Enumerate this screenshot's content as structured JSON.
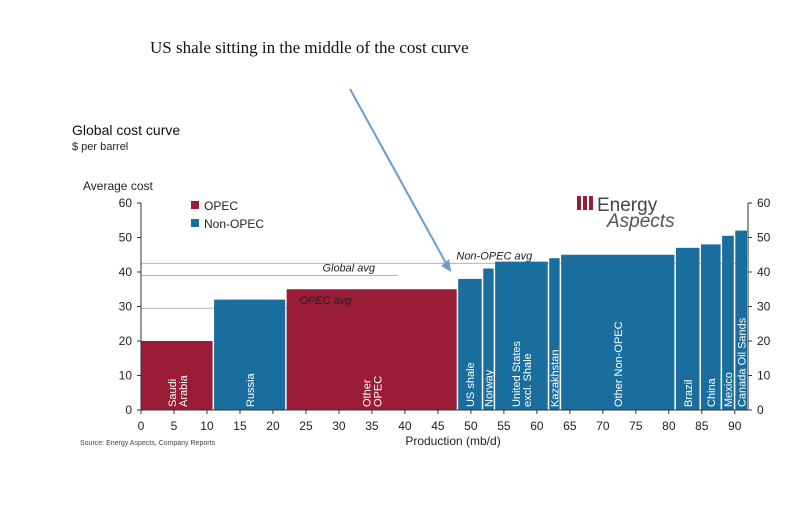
{
  "headline": "US shale sitting in the middle of the cost curve",
  "source": "Source: Energy Aspects, Company Reports",
  "logo": {
    "line1": "Energy",
    "line2": "Aspects"
  },
  "chart_data": {
    "type": "bar",
    "title": "Global cost curve",
    "subtitle": "$ per barrel",
    "ylabel": "Average cost",
    "xlabel": "Production (mb/d)",
    "xlim": [
      0,
      92
    ],
    "ylim": [
      0,
      60
    ],
    "xticks": [
      0,
      5,
      10,
      15,
      20,
      25,
      30,
      35,
      40,
      45,
      50,
      55,
      60,
      65,
      70,
      75,
      80,
      85,
      90
    ],
    "yticks": [
      0,
      10,
      20,
      30,
      40,
      50,
      60
    ],
    "legend": {
      "position": "top-left",
      "entries": [
        {
          "name": "OPEC",
          "color": "#9b1c37"
        },
        {
          "name": "Non-OPEC",
          "color": "#1a6e9e"
        }
      ]
    },
    "bars": [
      {
        "label": "Saudi Arabia",
        "lines": [
          "Saudi",
          "Arabia"
        ],
        "group": "OPEC",
        "x0": 0,
        "x1": 11,
        "value": 20
      },
      {
        "label": "Russia",
        "lines": [
          "Russia"
        ],
        "group": "Non-OPEC",
        "x0": 11,
        "x1": 22,
        "value": 32
      },
      {
        "label": "Other OPEC",
        "lines": [
          "Other",
          "OPEC"
        ],
        "group": "OPEC",
        "x0": 22,
        "x1": 48,
        "value": 35
      },
      {
        "label": "US shale",
        "lines": [
          "US  shale"
        ],
        "group": "Non-OPEC",
        "x0": 48,
        "x1": 51.8,
        "value": 38
      },
      {
        "label": "Norway",
        "lines": [
          "Norway"
        ],
        "group": "Non-OPEC",
        "x0": 51.8,
        "x1": 53.6,
        "value": 41
      },
      {
        "label": "United States excl. Shale",
        "lines": [
          "United States",
          "excl. Shale"
        ],
        "group": "Non-OPEC",
        "x0": 53.6,
        "x1": 61.8,
        "value": 43
      },
      {
        "label": "Kazakhstan",
        "lines": [
          "Kazakhstan"
        ],
        "group": "Non-OPEC",
        "x0": 61.8,
        "x1": 63.6,
        "value": 44
      },
      {
        "label": "Other Non-OPEC",
        "lines": [
          "Other Non-OPEC"
        ],
        "group": "Non-OPEC",
        "x0": 63.6,
        "x1": 81,
        "value": 45
      },
      {
        "label": "Brazil",
        "lines": [
          "Brazil"
        ],
        "group": "Non-OPEC",
        "x0": 81,
        "x1": 84.8,
        "value": 47
      },
      {
        "label": "China",
        "lines": [
          "China"
        ],
        "group": "Non-OPEC",
        "x0": 84.8,
        "x1": 88,
        "value": 48
      },
      {
        "label": "Mexico",
        "lines": [
          "Mexico"
        ],
        "group": "Non-OPEC",
        "x0": 88,
        "x1": 90,
        "value": 50.5
      },
      {
        "label": "Canada Oil Sands",
        "lines": [
          "Canada Oil Sands"
        ],
        "group": "Non-OPEC",
        "x0": 90,
        "x1": 92,
        "value": 52
      }
    ],
    "reference_lines": [
      {
        "label": "Non-OPEC avg",
        "value": 42.5,
        "x0": 0,
        "x1": 92,
        "label_x": 47.8
      },
      {
        "label": "Global avg",
        "value": 39,
        "x0": 0,
        "x1": 39,
        "label_x": 27.5
      },
      {
        "label": "OPEC avg",
        "value": 29.5,
        "x0": 0,
        "x1": 36.5,
        "label_x": 24
      }
    ],
    "annotation": {
      "text": "US shale sitting in the middle of the cost curve",
      "points_to": {
        "x": 47,
        "y": 40
      }
    }
  }
}
